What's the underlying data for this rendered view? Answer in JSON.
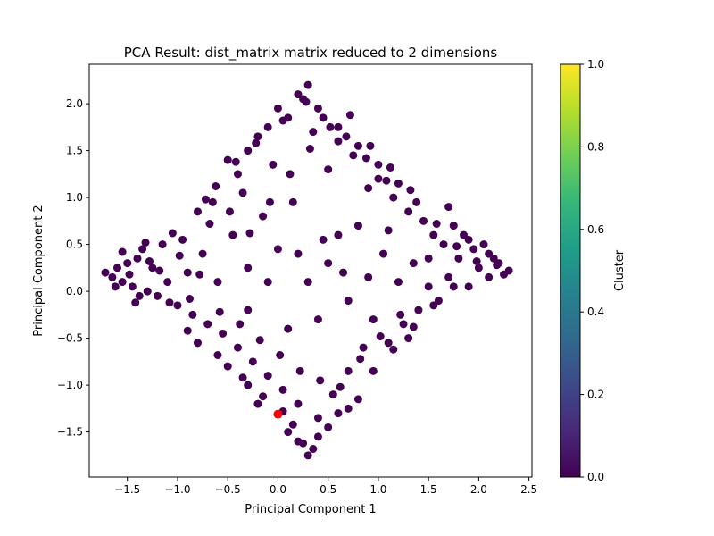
{
  "chart_data": {
    "type": "scatter",
    "title": "PCA Result: dist_matrix matrix reduced to 2 dimensions",
    "xlabel": "Principal Component 1",
    "ylabel": "Principal Component 2",
    "xlim": [
      -1.88,
      2.53
    ],
    "ylim": [
      -1.98,
      2.42
    ],
    "x_ticks": [
      -1.5,
      -1.0,
      -0.5,
      0.0,
      0.5,
      1.0,
      1.5,
      2.0,
      2.5
    ],
    "y_ticks": [
      -1.5,
      -1.0,
      -0.5,
      0.0,
      0.5,
      1.0,
      1.5,
      2.0
    ],
    "x_tick_labels": [
      "−1.5",
      "−1.0",
      "−0.5",
      "0.0",
      "0.5",
      "1.0",
      "1.5",
      "2.0",
      "2.5"
    ],
    "y_tick_labels": [
      "−1.5",
      "−1.0",
      "−0.5",
      "0.0",
      "0.5",
      "1.0",
      "1.5",
      "2.0"
    ],
    "grid": false,
    "point_color": "#440154",
    "highlight_color": "#ff0000",
    "highlight_point": {
      "x": 0.0,
      "y": -1.31
    },
    "colorbar": {
      "label": "Cluster",
      "range": [
        0.0,
        1.0
      ],
      "ticks": [
        0.0,
        0.2,
        0.4,
        0.6,
        0.8,
        1.0
      ],
      "tick_labels": [
        "0.0",
        "0.2",
        "0.4",
        "0.6",
        "0.8",
        "1.0"
      ],
      "colormap": [
        "#440154",
        "#482878",
        "#3e4989",
        "#31688e",
        "#26828e",
        "#1f9e89",
        "#35b779",
        "#6ece58",
        "#b5de2b",
        "#fde725"
      ]
    },
    "points": [
      [
        -1.72,
        0.2
      ],
      [
        -1.65,
        0.15
      ],
      [
        -1.6,
        0.25
      ],
      [
        -1.55,
        0.1
      ],
      [
        -1.5,
        0.3
      ],
      [
        -1.45,
        0.05
      ],
      [
        -1.4,
        0.35
      ],
      [
        -1.35,
        0.45
      ],
      [
        -1.3,
        0.0
      ],
      [
        -1.25,
        0.25
      ],
      [
        -1.2,
        -0.05
      ],
      [
        -1.15,
        0.5
      ],
      [
        -1.1,
        0.1
      ],
      [
        -1.05,
        0.62
      ],
      [
        -1.0,
        -0.15
      ],
      [
        -0.95,
        0.55
      ],
      [
        -0.9,
        0.2
      ],
      [
        -0.85,
        -0.25
      ],
      [
        -0.8,
        0.85
      ],
      [
        -0.75,
        0.4
      ],
      [
        -0.7,
        -0.35
      ],
      [
        -0.65,
        0.95
      ],
      [
        -0.6,
        0.1
      ],
      [
        -0.55,
        -0.45
      ],
      [
        -0.5,
        1.4
      ],
      [
        -0.45,
        0.6
      ],
      [
        -0.4,
        -0.6
      ],
      [
        -0.35,
        1.05
      ],
      [
        -0.3,
        0.25
      ],
      [
        -0.25,
        -0.75
      ],
      [
        -0.2,
        1.65
      ],
      [
        -0.15,
        0.8
      ],
      [
        -0.1,
        -0.9
      ],
      [
        -0.05,
        1.35
      ],
      [
        0.0,
        0.45
      ],
      [
        0.05,
        -1.05
      ],
      [
        0.1,
        1.85
      ],
      [
        0.15,
        0.95
      ],
      [
        0.2,
        -1.2
      ],
      [
        0.25,
        2.05
      ],
      [
        0.3,
        2.2
      ],
      [
        0.35,
        1.7
      ],
      [
        0.4,
        -1.35
      ],
      [
        0.45,
        0.55
      ],
      [
        0.5,
        1.3
      ],
      [
        0.55,
        -1.1
      ],
      [
        0.6,
        1.6
      ],
      [
        0.65,
        0.2
      ],
      [
        0.7,
        -0.85
      ],
      [
        0.75,
        1.45
      ],
      [
        0.8,
        0.7
      ],
      [
        0.85,
        -0.6
      ],
      [
        0.9,
        1.1
      ],
      [
        0.95,
        -0.3
      ],
      [
        1.0,
        1.2
      ],
      [
        1.05,
        0.4
      ],
      [
        1.1,
        -0.55
      ],
      [
        1.15,
        1.0
      ],
      [
        1.2,
        0.1
      ],
      [
        1.25,
        -0.35
      ],
      [
        1.3,
        0.85
      ],
      [
        1.35,
        0.3
      ],
      [
        1.4,
        -0.2
      ],
      [
        1.45,
        0.75
      ],
      [
        1.5,
        0.05
      ],
      [
        1.55,
        0.6
      ],
      [
        1.6,
        -0.1
      ],
      [
        1.65,
        0.5
      ],
      [
        1.7,
        0.15
      ],
      [
        1.75,
        0.7
      ],
      [
        1.8,
        0.35
      ],
      [
        1.85,
        0.6
      ],
      [
        1.9,
        0.05
      ],
      [
        1.95,
        0.45
      ],
      [
        2.0,
        0.25
      ],
      [
        2.05,
        0.5
      ],
      [
        2.1,
        0.15
      ],
      [
        2.15,
        0.35
      ],
      [
        2.2,
        0.3
      ],
      [
        2.3,
        0.22
      ],
      [
        -1.62,
        0.05
      ],
      [
        -1.48,
        0.18
      ],
      [
        -1.38,
        -0.05
      ],
      [
        -1.28,
        0.32
      ],
      [
        -1.18,
        0.22
      ],
      [
        -1.08,
        -0.12
      ],
      [
        -0.98,
        0.38
      ],
      [
        -0.88,
        -0.08
      ],
      [
        -0.78,
        0.18
      ],
      [
        -0.68,
        0.72
      ],
      [
        -0.58,
        -0.22
      ],
      [
        -0.48,
        0.85
      ],
      [
        -0.38,
        -0.35
      ],
      [
        -0.28,
        0.62
      ],
      [
        -0.18,
        -0.52
      ],
      [
        -0.08,
        0.95
      ],
      [
        0.02,
        -0.68
      ],
      [
        0.12,
        1.25
      ],
      [
        0.22,
        -0.85
      ],
      [
        0.32,
        1.52
      ],
      [
        0.42,
        -0.95
      ],
      [
        0.52,
        1.75
      ],
      [
        0.62,
        -1.02
      ],
      [
        0.72,
        1.88
      ],
      [
        0.82,
        -0.72
      ],
      [
        0.92,
        1.55
      ],
      [
        1.02,
        -0.48
      ],
      [
        1.12,
        1.32
      ],
      [
        1.22,
        -0.25
      ],
      [
        1.32,
        1.08
      ],
      [
        -0.3,
        -1.0
      ],
      [
        -0.2,
        -1.2
      ],
      [
        0.1,
        -1.5
      ],
      [
        0.2,
        -1.6
      ],
      [
        0.3,
        -1.75
      ],
      [
        0.4,
        -1.55
      ],
      [
        0.5,
        -1.45
      ],
      [
        0.6,
        -1.3
      ],
      [
        0.7,
        -1.25
      ],
      [
        0.8,
        -1.15
      ],
      [
        -0.4,
        1.25
      ],
      [
        -0.3,
        1.5
      ],
      [
        -0.1,
        1.75
      ],
      [
        0.0,
        1.95
      ],
      [
        0.2,
        2.1
      ],
      [
        0.4,
        1.95
      ],
      [
        0.6,
        1.75
      ],
      [
        0.8,
        1.55
      ],
      [
        1.0,
        1.35
      ],
      [
        1.2,
        1.15
      ],
      [
        -0.1,
        0.1
      ],
      [
        0.2,
        0.4
      ],
      [
        0.4,
        -0.3
      ],
      [
        0.6,
        0.6
      ],
      [
        -0.3,
        -0.2
      ],
      [
        0.1,
        -0.4
      ],
      [
        0.3,
        0.1
      ],
      [
        0.5,
        0.3
      ],
      [
        0.7,
        -0.1
      ],
      [
        0.9,
        0.15
      ],
      [
        1.1,
        0.65
      ],
      [
        1.3,
        -0.5
      ],
      [
        1.5,
        0.35
      ],
      [
        1.7,
        0.9
      ],
      [
        1.9,
        0.55
      ],
      [
        2.1,
        0.4
      ],
      [
        2.25,
        0.18
      ],
      [
        -1.55,
        0.42
      ],
      [
        -1.42,
        -0.12
      ],
      [
        -1.32,
        0.52
      ],
      [
        -0.9,
        -0.42
      ],
      [
        -0.8,
        -0.55
      ],
      [
        -0.6,
        -0.68
      ],
      [
        -0.5,
        -0.8
      ],
      [
        -0.35,
        -0.92
      ],
      [
        -0.15,
        -1.12
      ],
      [
        0.05,
        -1.28
      ],
      [
        0.15,
        -1.42
      ],
      [
        0.25,
        -1.62
      ],
      [
        0.35,
        -1.68
      ],
      [
        -0.72,
        0.98
      ],
      [
        -0.62,
        1.12
      ],
      [
        -0.42,
        1.38
      ],
      [
        -0.22,
        1.58
      ],
      [
        0.05,
        1.82
      ],
      [
        0.28,
        2.02
      ],
      [
        0.45,
        1.85
      ],
      [
        0.68,
        1.65
      ],
      [
        0.88,
        1.42
      ],
      [
        1.08,
        1.18
      ],
      [
        1.38,
        0.95
      ],
      [
        1.58,
        0.72
      ],
      [
        1.78,
        0.48
      ],
      [
        1.98,
        0.32
      ],
      [
        2.18,
        0.28
      ],
      [
        0.95,
        -0.85
      ],
      [
        1.15,
        -0.62
      ],
      [
        1.35,
        -0.38
      ],
      [
        1.55,
        -0.15
      ],
      [
        1.75,
        0.05
      ]
    ]
  }
}
